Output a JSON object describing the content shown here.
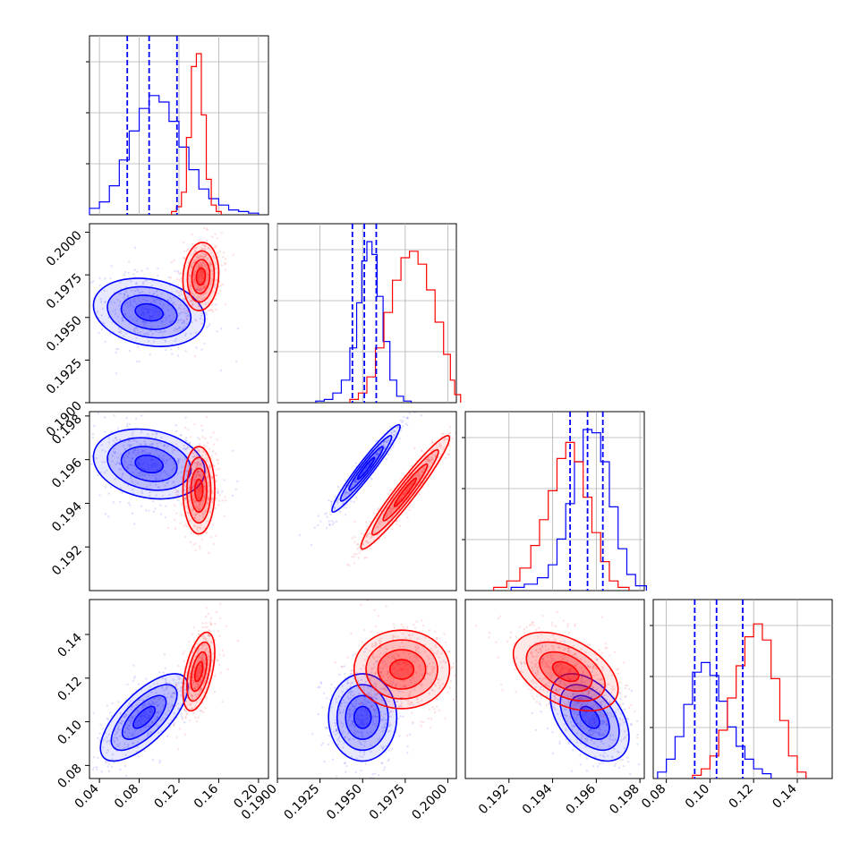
{
  "colors": {
    "series_a": "#0000ff",
    "series_b": "#ff0000",
    "grid": "#b0b0b0",
    "frame": "#000000"
  },
  "chart_data": {
    "type": "corner",
    "grid": true,
    "series": [
      {
        "name": "",
        "color": "#0000ff"
      },
      {
        "name": "",
        "color": "#ff0000"
      }
    ],
    "parameters": [
      {
        "range": [
          0.03,
          0.21
        ],
        "ticks": [
          "0.04",
          "0.08",
          "0.12",
          "0.16",
          "0.20"
        ],
        "tick_values": [
          0.04,
          0.08,
          0.12,
          0.16,
          0.2
        ],
        "hist_series_a": [
          0.04,
          0.08,
          0.18,
          0.34,
          0.52,
          0.66,
          0.74,
          0.7,
          0.58,
          0.42,
          0.28,
          0.16,
          0.1,
          0.06,
          0.03,
          0.02,
          0.01
        ],
        "hist_series_a_x": [
          0.035,
          0.045,
          0.055,
          0.065,
          0.075,
          0.085,
          0.095,
          0.105,
          0.115,
          0.125,
          0.135,
          0.145,
          0.155,
          0.165,
          0.175,
          0.185,
          0.195
        ],
        "hist_series_b": [
          0.02,
          0.05,
          0.14,
          0.48,
          0.92,
          1.0,
          0.62,
          0.22,
          0.06,
          0.02
        ],
        "hist_series_b_x": [
          0.115,
          0.12,
          0.125,
          0.13,
          0.135,
          0.14,
          0.145,
          0.15,
          0.155,
          0.16
        ],
        "quantiles_series_a": [
          0.068,
          0.09,
          0.118
        ]
      },
      {
        "range": [
          0.19,
          0.2005
        ],
        "ticks": [
          "0.1900",
          "0.1925",
          "0.1950",
          "0.1975",
          "0.2000"
        ],
        "tick_values": [
          0.19,
          0.1925,
          0.195,
          0.1975,
          0.2
        ],
        "y_ticks": [
          "0.1900",
          "0.1925",
          "0.1950",
          "0.1975",
          "0.2000"
        ],
        "hist_series_a": [
          0.01,
          0.02,
          0.06,
          0.14,
          0.34,
          0.62,
          0.88,
          1.0,
          0.92,
          0.66,
          0.38,
          0.14,
          0.04,
          0.01
        ],
        "hist_series_a_x": [
          0.1925,
          0.193,
          0.1935,
          0.194,
          0.1945,
          0.1948,
          0.1951,
          0.1954,
          0.1957,
          0.196,
          0.1964,
          0.1968,
          0.1972,
          0.1976
        ],
        "hist_series_b": [
          0.02,
          0.06,
          0.16,
          0.34,
          0.56,
          0.76,
          0.9,
          0.94,
          0.86,
          0.7,
          0.5,
          0.3,
          0.14,
          0.05
        ],
        "hist_series_b_x": [
          0.1945,
          0.195,
          0.1955,
          0.196,
          0.1965,
          0.197,
          0.1975,
          0.198,
          0.1985,
          0.199,
          0.1995,
          0.2,
          0.2003,
          0.2005
        ],
        "quantiles_series_a": [
          0.1944,
          0.1951,
          0.1958
        ]
      },
      {
        "range": [
          0.19,
          0.1982
        ],
        "ticks": [
          "0.192",
          "0.194",
          "0.196",
          "0.198"
        ],
        "tick_values": [
          0.192,
          0.194,
          0.196,
          0.198
        ],
        "hist_series_a": [
          0.02,
          0.04,
          0.08,
          0.16,
          0.32,
          0.54,
          0.8,
          1.0,
          0.98,
          0.8,
          0.52,
          0.26,
          0.1,
          0.03
        ],
        "hist_series_a_x": [
          0.1924,
          0.193,
          0.1936,
          0.194,
          0.1944,
          0.1948,
          0.1952,
          0.1956,
          0.196,
          0.1964,
          0.1968,
          0.1972,
          0.1976,
          0.198
        ],
        "hist_series_b": [
          0.02,
          0.06,
          0.14,
          0.28,
          0.44,
          0.62,
          0.82,
          0.92,
          0.8,
          0.58,
          0.36,
          0.18,
          0.06,
          0.02
        ],
        "hist_series_b_x": [
          0.1916,
          0.1922,
          0.1928,
          0.1932,
          0.1936,
          0.194,
          0.1944,
          0.1948,
          0.1952,
          0.1956,
          0.196,
          0.1964,
          0.1968,
          0.1972
        ],
        "quantiles_series_a": [
          0.1948,
          0.1956,
          0.1963
        ]
      },
      {
        "range": [
          0.074,
          0.156
        ],
        "ticks": [
          "0.08",
          "0.10",
          "0.12",
          "0.14"
        ],
        "tick_values": [
          0.08,
          0.1,
          0.12,
          0.14
        ],
        "hist_series_a": [
          0.04,
          0.12,
          0.26,
          0.46,
          0.66,
          0.72,
          0.64,
          0.48,
          0.32,
          0.2,
          0.12,
          0.06,
          0.03
        ],
        "hist_series_a_x": [
          0.078,
          0.082,
          0.086,
          0.09,
          0.094,
          0.098,
          0.102,
          0.106,
          0.11,
          0.114,
          0.118,
          0.122,
          0.126
        ],
        "hist_series_b": [
          0.02,
          0.06,
          0.14,
          0.3,
          0.5,
          0.7,
          0.88,
          0.96,
          0.86,
          0.62,
          0.36,
          0.14,
          0.04
        ],
        "hist_series_b_x": [
          0.094,
          0.098,
          0.102,
          0.106,
          0.11,
          0.114,
          0.118,
          0.122,
          0.126,
          0.13,
          0.134,
          0.138,
          0.142
        ],
        "quantiles_series_a": [
          0.093,
          0.103,
          0.115
        ]
      }
    ],
    "joint": [
      {
        "row": 1,
        "col": 0,
        "series_a": {
          "mean": [
            0.09,
            0.1953
          ],
          "sd": [
            0.028,
            0.001
          ],
          "corr": -0.2
        },
        "series_b": {
          "mean": [
            0.142,
            0.1974
          ],
          "sd": [
            0.009,
            0.001
          ],
          "corr": 0.1
        }
      },
      {
        "row": 2,
        "col": 0,
        "series_a": {
          "mean": [
            0.09,
            0.1958
          ],
          "sd": [
            0.028,
            0.0008
          ],
          "corr": -0.2
        },
        "series_b": {
          "mean": [
            0.14,
            0.1946
          ],
          "sd": [
            0.008,
            0.001
          ],
          "corr": 0.0
        }
      },
      {
        "row": 2,
        "col": 1,
        "series_a": {
          "mean": [
            0.1952,
            0.1956
          ],
          "sd": [
            0.001,
            0.001
          ],
          "corr": 0.96
        },
        "series_b": {
          "mean": [
            0.1975,
            0.1945
          ],
          "sd": [
            0.0013,
            0.0013
          ],
          "corr": 0.96
        }
      },
      {
        "row": 3,
        "col": 0,
        "series_a": {
          "mean": [
            0.085,
            0.102
          ],
          "sd": [
            0.022,
            0.01
          ],
          "corr": 0.7
        },
        "series_b": {
          "mean": [
            0.14,
            0.123
          ],
          "sd": [
            0.008,
            0.009
          ],
          "corr": 0.5
        }
      },
      {
        "row": 3,
        "col": 1,
        "series_a": {
          "mean": [
            0.195,
            0.102
          ],
          "sd": [
            0.001,
            0.01
          ],
          "corr": 0.0
        },
        "series_b": {
          "mean": [
            0.1973,
            0.124
          ],
          "sd": [
            0.0014,
            0.009
          ],
          "corr": 0.0
        }
      },
      {
        "row": 3,
        "col": 2,
        "series_a": {
          "mean": [
            0.1957,
            0.102
          ],
          "sd": [
            0.0009,
            0.01
          ],
          "corr": -0.45
        },
        "series_b": {
          "mean": [
            0.1946,
            0.123
          ],
          "sd": [
            0.0012,
            0.009
          ],
          "corr": -0.45
        }
      }
    ]
  }
}
